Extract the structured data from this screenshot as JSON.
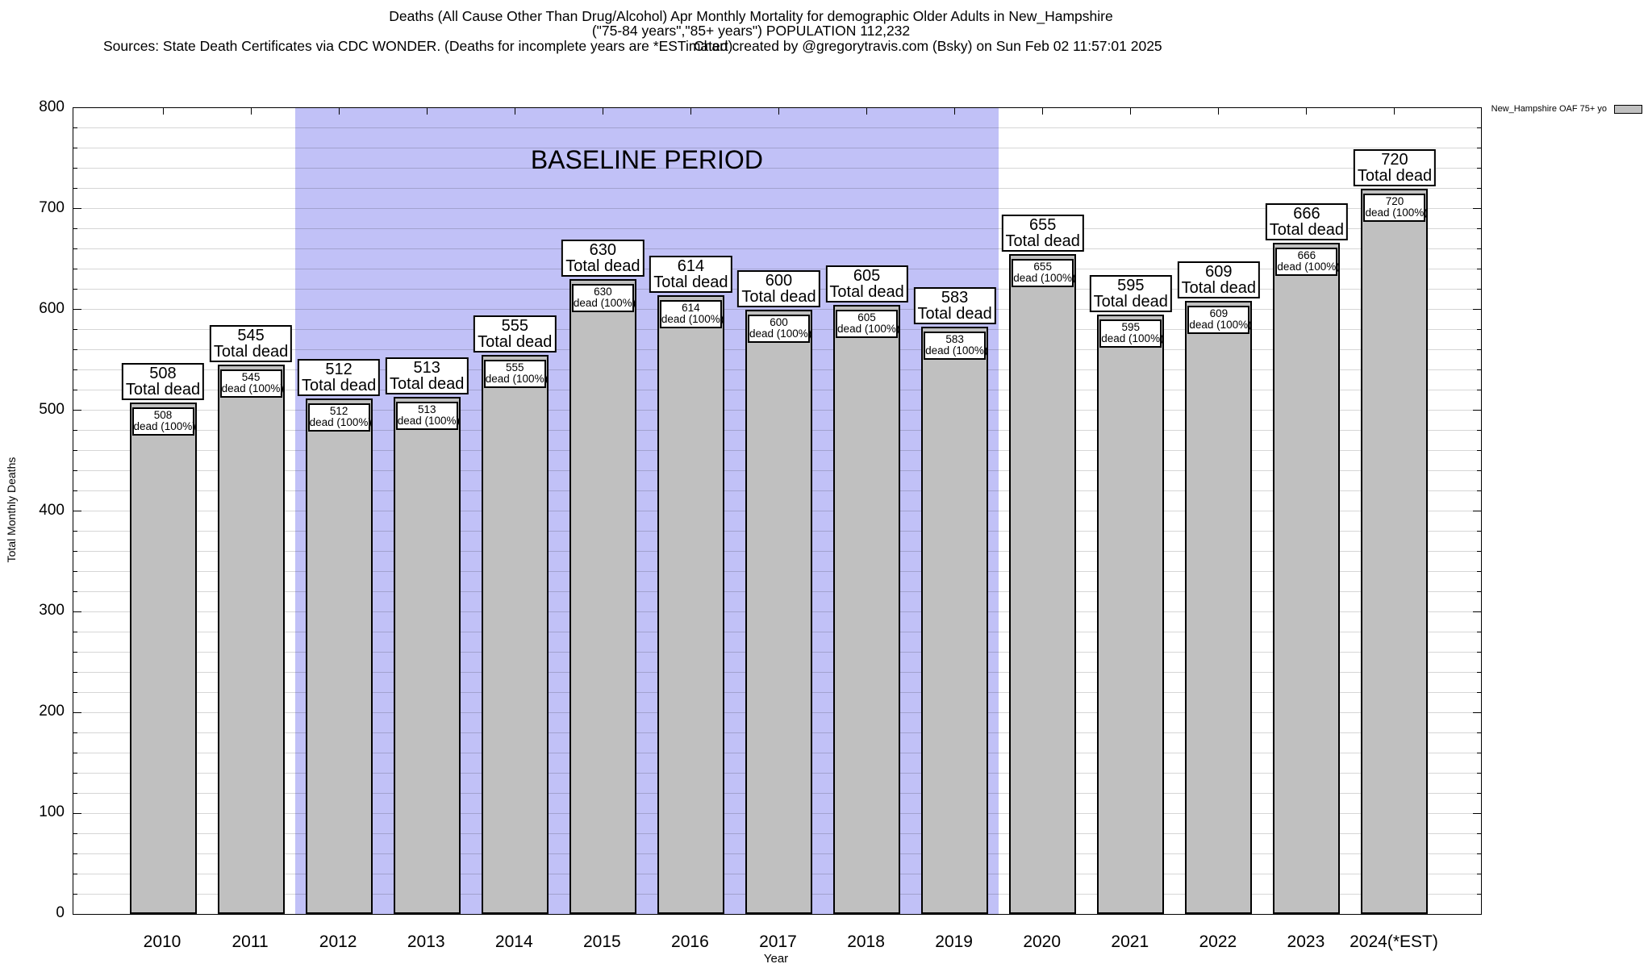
{
  "header": {
    "sources_line": "Sources: State Death Certificates via CDC WONDER. (Deaths for incomplete years are *ESTimated)",
    "credit_line": "Chart created by @gregorytravis.com (Bsky) on Sun Feb 02 11:57:01 2025"
  },
  "legend": {
    "label": "New_Hampshire OAF 75+ yo",
    "swatch_color": "#c0c0c0"
  },
  "chart_data": {
    "type": "bar",
    "title": "Deaths (All Cause Other Than Drug/Alcohol) Apr Monthly Mortality for demographic Older Adults in New_Hampshire",
    "subtitle": "(\"75-84 years\",\"85+ years\") POPULATION 112,232",
    "xlabel": "Year",
    "ylabel": "Total Monthly Deaths",
    "ylim": [
      0,
      800
    ],
    "ytick_interval": 100,
    "minor_ytick_interval": 20,
    "ytick_labels": [
      "0",
      "100",
      "200",
      "300",
      "400",
      "500",
      "600",
      "700",
      "800"
    ],
    "grid": true,
    "legend_position": "top-right",
    "bar_color": "#c0c0c0",
    "categories": [
      "2010",
      "2011",
      "2012",
      "2013",
      "2014",
      "2015",
      "2016",
      "2017",
      "2018",
      "2019",
      "2020",
      "2021",
      "2022",
      "2023",
      "2024(*EST)"
    ],
    "values": [
      508,
      545,
      512,
      513,
      555,
      630,
      614,
      600,
      605,
      583,
      655,
      595,
      609,
      666,
      720
    ],
    "bar_top_label_suffix": "Total dead",
    "bar_inner_label_suffix": "dead (100%)",
    "baseline_region": {
      "label": "BASELINE PERIOD",
      "start_category": "2012",
      "end_category": "2019",
      "color": "#c1c1f7"
    }
  }
}
